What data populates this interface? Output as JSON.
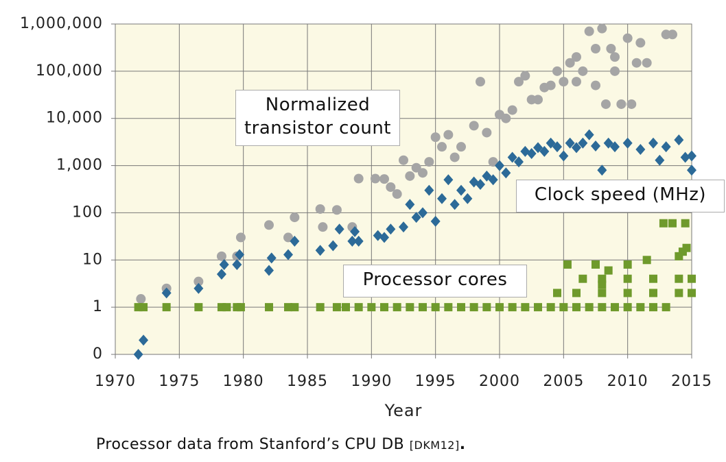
{
  "chart_data": {
    "type": "scatter",
    "x_label": "Year",
    "xlim": [
      1970,
      2015
    ],
    "xticks": [
      1970,
      1975,
      1980,
      1985,
      1990,
      1995,
      2000,
      2005,
      2010,
      2015
    ],
    "ylim": [
      0.1,
      1000000
    ],
    "log_y": true,
    "grid": true,
    "yticks": [
      {
        "value": 0.1,
        "label": "0"
      },
      1,
      10,
      100,
      {
        "value": 1000,
        "label": "1,000"
      },
      {
        "value": 10000,
        "label": "10,000"
      },
      {
        "value": 100000,
        "label": "100,000"
      },
      {
        "value": 1000000,
        "label": "1,000,000"
      }
    ],
    "series": [
      {
        "name": "Normalized transistor count",
        "color": "#a5a5a5",
        "marker": "circle",
        "x": [
          1972,
          1974,
          1976.5,
          1978.3,
          1979.5,
          1979.8,
          1982,
          1983.5,
          1984,
          1986,
          1986.2,
          1987.3,
          1988.5,
          1989,
          1990.3,
          1991,
          1991.5,
          1992,
          1992.5,
          1993,
          1993.5,
          1994,
          1994.5,
          1995,
          1995.5,
          1996,
          1996.5,
          1997,
          1998,
          1998.5,
          1999,
          1999.5,
          2000,
          2000.5,
          2001,
          2001.5,
          2002,
          2002.5,
          2003,
          2003.5,
          2004,
          2004.5,
          2005,
          2005.5,
          2006,
          2006.5,
          2007,
          2007.5,
          2008,
          2008.3,
          2008.7,
          2009,
          2009.5,
          2010,
          2010.3,
          2010.7,
          2011,
          2011.5,
          2013,
          2013.5,
          2007.5,
          2009,
          2006
        ],
        "values": [
          1.5,
          2.5,
          3.5,
          12,
          12,
          30,
          55,
          30,
          80,
          120,
          50,
          115,
          50,
          530,
          530,
          520,
          350,
          250,
          1300,
          600,
          900,
          700,
          1200,
          4000,
          2500,
          4500,
          1500,
          2500,
          7000,
          60000,
          5000,
          1200,
          12000,
          10000,
          15000,
          60000,
          80000,
          25000,
          25000,
          45000,
          50000,
          100000,
          60000,
          150000,
          200000,
          100000,
          700000,
          300000,
          800000,
          20000,
          300000,
          100000,
          20000,
          500000,
          20000,
          150000,
          400000,
          150000,
          600000,
          600000,
          50000,
          200000,
          60000
        ]
      },
      {
        "name": "Clock speed (MHz)",
        "color": "#2c6a98",
        "marker": "diamond",
        "x": [
          1971.8,
          1972.2,
          1974,
          1976.5,
          1978.3,
          1978.5,
          1979.5,
          1979.7,
          1982,
          1982.2,
          1983.5,
          1984,
          1986,
          1987,
          1987.5,
          1988.5,
          1988.7,
          1989,
          1990.5,
          1991,
          1991.5,
          1992.5,
          1993,
          1993.5,
          1994,
          1994.5,
          1995,
          1995.5,
          1996,
          1996.5,
          1997,
          1997.5,
          1998,
          1998.5,
          1999,
          1999.5,
          2000,
          2000.5,
          2001,
          2001.5,
          2002,
          2002.5,
          2003,
          2003.5,
          2004,
          2004.5,
          2005,
          2005.5,
          2006,
          2006.5,
          2007,
          2007.5,
          2008,
          2008.5,
          2009,
          2010,
          2011,
          2012,
          2013,
          2014,
          2014.5,
          2015,
          2015,
          2012.5
        ],
        "values": [
          0.1,
          0.2,
          2,
          2.5,
          5,
          8,
          8,
          13,
          6,
          11,
          13,
          25,
          16,
          20,
          45,
          25,
          40,
          25,
          33,
          30,
          45,
          50,
          150,
          80,
          100,
          300,
          66,
          200,
          500,
          150,
          300,
          200,
          450,
          400,
          600,
          500,
          1000,
          700,
          1500,
          1200,
          2000,
          1800,
          2400,
          2000,
          3000,
          2500,
          1600,
          3000,
          2400,
          3000,
          4500,
          2600,
          800,
          3000,
          2500,
          3000,
          2200,
          3000,
          2500,
          3500,
          1500,
          800,
          1600,
          1300
        ]
      },
      {
        "name": "Processor cores",
        "color": "#6f9a2c",
        "marker": "square",
        "x": [
          1971.8,
          1972.2,
          1974,
          1976.5,
          1978.3,
          1978.7,
          1979.5,
          1979.8,
          1982,
          1983.5,
          1984,
          1986,
          1987.3,
          1988,
          1989,
          1990,
          1991,
          1992,
          1993,
          1994,
          1995,
          1996,
          1997,
          1998,
          1999,
          2000,
          2001,
          2002,
          2003,
          2004,
          2005,
          2006,
          2007,
          2008,
          2009,
          2010,
          2011,
          2012,
          2013,
          2004.5,
          2006,
          2008,
          2010,
          2012,
          2014,
          2015,
          2006.5,
          2008,
          2010,
          2012,
          2014,
          2015,
          2005.3,
          2007.5,
          2010,
          2008.5,
          2011.5,
          2008,
          2012.8,
          2013.5,
          2014.5,
          2014,
          2014.3,
          2014.6
        ],
        "values": [
          1,
          1,
          1,
          1,
          1,
          1,
          1,
          1,
          1,
          1,
          1,
          1,
          1,
          1,
          1,
          1,
          1,
          1,
          1,
          1,
          1,
          1,
          1,
          1,
          1,
          1,
          1,
          1,
          1,
          1,
          1,
          1,
          1,
          1,
          1,
          1,
          1,
          1,
          1,
          2,
          2,
          2,
          2,
          2,
          2,
          2,
          4,
          4,
          4,
          4,
          4,
          4,
          8,
          8,
          8,
          6,
          10,
          3,
          60,
          60,
          60,
          12,
          15,
          18
        ]
      }
    ],
    "footnote": {
      "text": "Processor data from Stanford’s CPU DB",
      "citation": "[DKM12]",
      "end": "."
    }
  }
}
